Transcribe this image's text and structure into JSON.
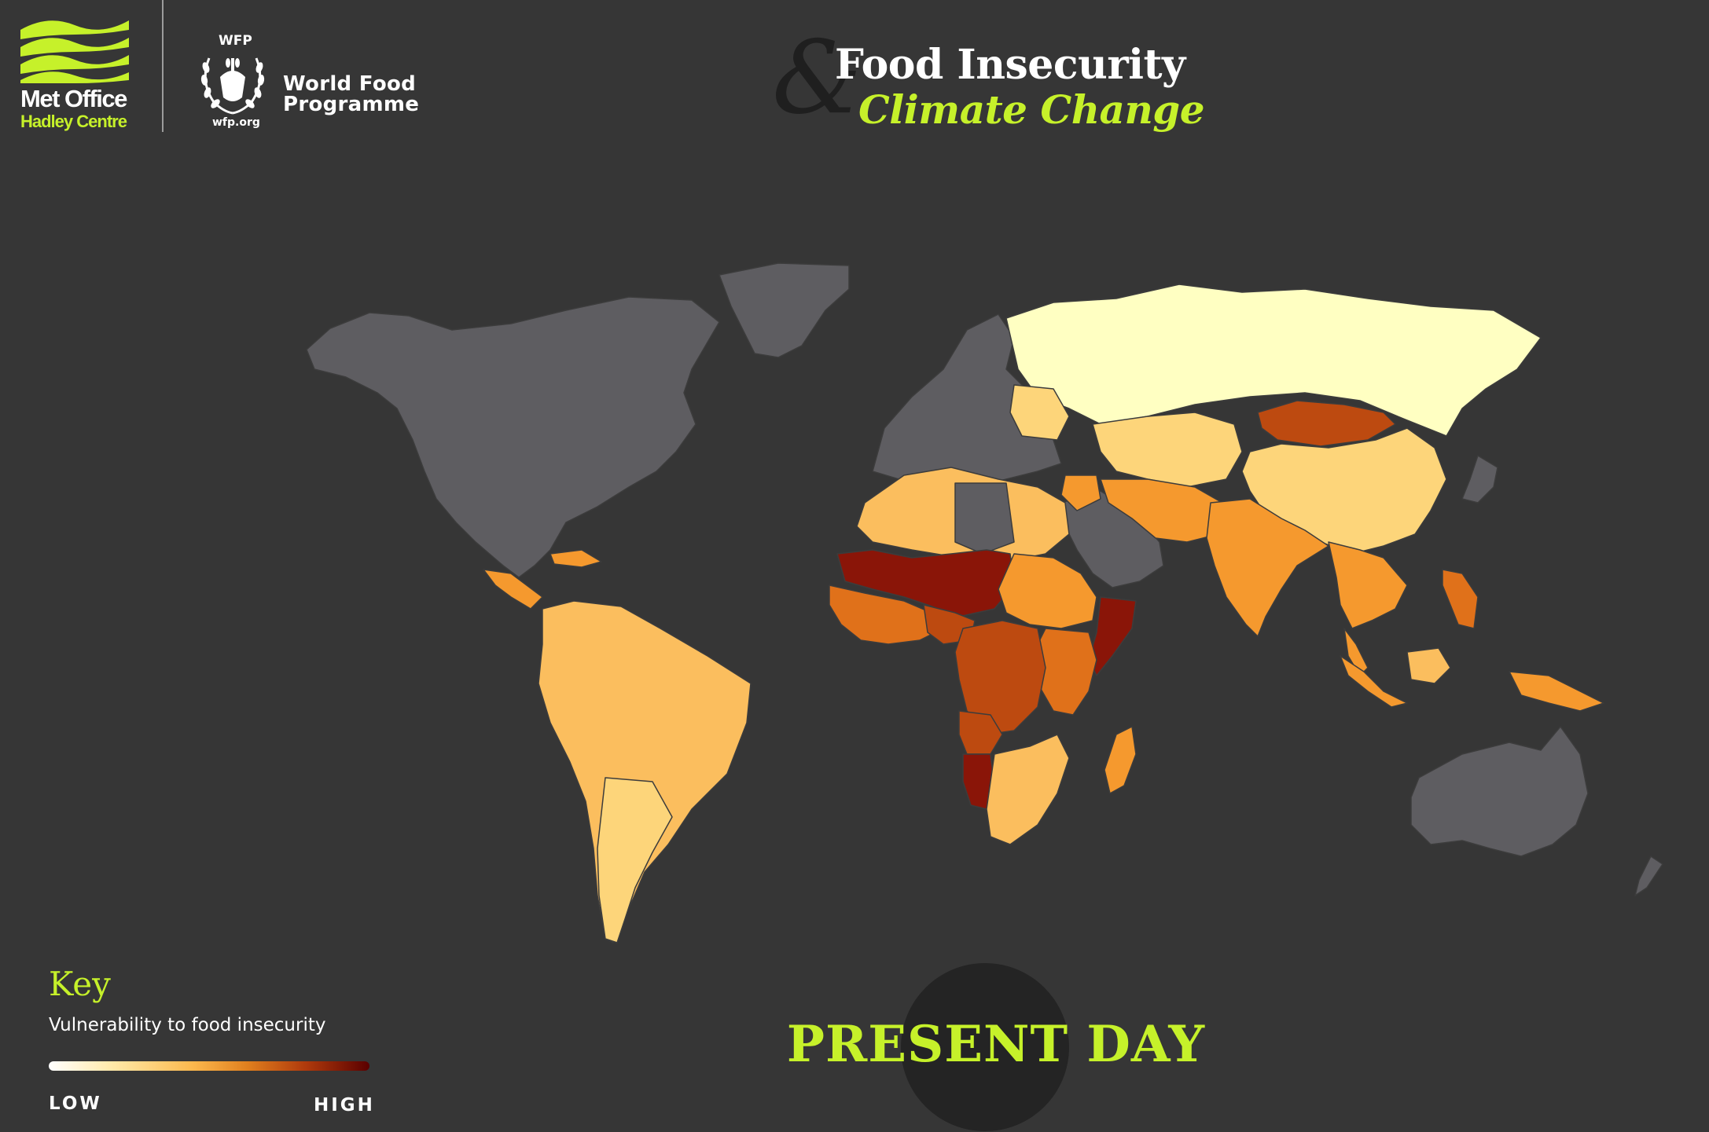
{
  "header": {
    "met_office": {
      "name": "Met Office",
      "subtitle": "Hadley Centre"
    },
    "wfp": {
      "acronym": "WFP",
      "name_line_1": "World Food",
      "name_line_2": "Programme",
      "url": "wfp.org"
    }
  },
  "title": {
    "ampersand": "&",
    "line_1": "Food Insecurity",
    "line_2": "Climate Change"
  },
  "map": {
    "legend_ramp": [
      "#ffffc2",
      "#fdd57a",
      "#fbbe5e",
      "#f5992e",
      "#e0711a",
      "#bd4a10",
      "#8a1508",
      "#6b0000"
    ],
    "no_data_color": "#5e5d61",
    "ocean_color": "#363636",
    "regions": [
      {
        "name": "Russia",
        "color": "#ffffc2"
      },
      {
        "name": "Central Asia",
        "color": "#fdd57a"
      },
      {
        "name": "Mongolia",
        "color": "#bd4a10"
      },
      {
        "name": "China",
        "color": "#fdd57a"
      },
      {
        "name": "India",
        "color": "#f5992e"
      },
      {
        "name": "Southeast Asia",
        "color": "#f5992e"
      },
      {
        "name": "Latin America",
        "color": "#fdd57a"
      },
      {
        "name": "North Africa",
        "color": "#fbbe5e"
      },
      {
        "name": "Sahel",
        "color": "#8a1508"
      },
      {
        "name": "Somalia",
        "color": "#8a1508"
      },
      {
        "name": "Central Africa",
        "color": "#bd4a10"
      },
      {
        "name": "Southern Africa",
        "color": "#fbbe5e"
      }
    ]
  },
  "key": {
    "title": "Key",
    "subtitle": "Vulnerability to food insecurity",
    "low_label": "LOW",
    "high_label": "HIGH"
  },
  "period": {
    "label": "PRESENT DAY"
  }
}
